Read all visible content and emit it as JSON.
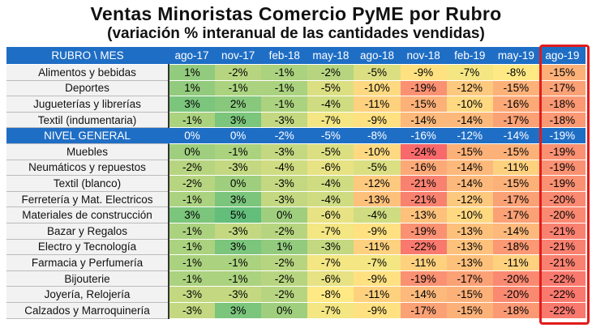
{
  "title": "Ventas Minoristas Comercio PyME por Rubro",
  "subtitle": "(variación % interanual de las cantidades vendidas)",
  "chart_data": {
    "type": "table",
    "title": "Ventas Minoristas Comercio PyME por Rubro",
    "subtitle": "(variación % interanual de las cantidades vendidas)",
    "corner_header": "RUBRO \\ MES",
    "columns": [
      "ago-17",
      "nov-17",
      "feb-18",
      "may-18",
      "ago-18",
      "nov-18",
      "feb-19",
      "may-19",
      "ago-19"
    ],
    "highlighted_column": "ago-19",
    "rows": [
      {
        "label": "Alimentos y bebidas",
        "values": [
          1,
          -2,
          -1,
          -2,
          -5,
          -9,
          -7,
          -8,
          -15
        ]
      },
      {
        "label": "Deportes",
        "values": [
          1,
          -1,
          -1,
          -5,
          -10,
          -19,
          -12,
          -15,
          -17
        ]
      },
      {
        "label": "Jugueterías y librerías",
        "values": [
          3,
          2,
          -1,
          -4,
          -11,
          -15,
          -10,
          -16,
          -18
        ]
      },
      {
        "label": "Textil (indumentaria)",
        "values": [
          -1,
          3,
          -3,
          -7,
          -9,
          -14,
          -14,
          -17,
          -18
        ]
      },
      {
        "label": "NIVEL GENERAL",
        "values": [
          0,
          0,
          -2,
          -5,
          -8,
          -16,
          -12,
          -14,
          -19
        ],
        "highlight": true
      },
      {
        "label": "Muebles",
        "values": [
          0,
          -1,
          -3,
          -5,
          -10,
          -24,
          -15,
          -15,
          -19
        ]
      },
      {
        "label": "Neumáticos y repuestos",
        "values": [
          -2,
          -3,
          -4,
          -6,
          -5,
          -16,
          -14,
          -11,
          -19
        ]
      },
      {
        "label": "Textil (blanco)",
        "values": [
          -2,
          0,
          -3,
          -4,
          -12,
          -21,
          -14,
          -15,
          -19
        ]
      },
      {
        "label": "Ferretería y Mat. Electricos",
        "values": [
          -1,
          3,
          -3,
          -4,
          -13,
          -21,
          -12,
          -17,
          -20
        ]
      },
      {
        "label": "Materiales de construcción",
        "values": [
          3,
          5,
          0,
          -6,
          -4,
          -13,
          -10,
          -17,
          -20
        ]
      },
      {
        "label": "Bazar y Regalos",
        "values": [
          -1,
          -3,
          -2,
          -7,
          -9,
          -19,
          -13,
          -14,
          -21
        ]
      },
      {
        "label": "Electro y  Tecnología",
        "values": [
          -1,
          3,
          1,
          -3,
          -11,
          -22,
          -13,
          -18,
          -21
        ]
      },
      {
        "label": "Farmacia y Perfumería",
        "values": [
          -1,
          -1,
          -2,
          -7,
          -7,
          -11,
          -13,
          -11,
          -21
        ]
      },
      {
        "label": "Bijouterie",
        "values": [
          -1,
          -1,
          -2,
          -6,
          -9,
          -19,
          -17,
          -20,
          -22
        ]
      },
      {
        "label": "Joyería, Relojería",
        "values": [
          -3,
          -3,
          -2,
          -8,
          -11,
          -14,
          -15,
          -20,
          -22
        ]
      },
      {
        "label": "Calzados y Marroquinería",
        "values": [
          -3,
          3,
          0,
          -7,
          -9,
          -17,
          -15,
          -18,
          -22
        ]
      }
    ],
    "unit": "%",
    "colors": {
      "high": "#63be7b",
      "mid": "#ffe984",
      "low": "#f8696b",
      "header": "#1f6ec5",
      "highlight_border": "#e31b1b"
    }
  }
}
